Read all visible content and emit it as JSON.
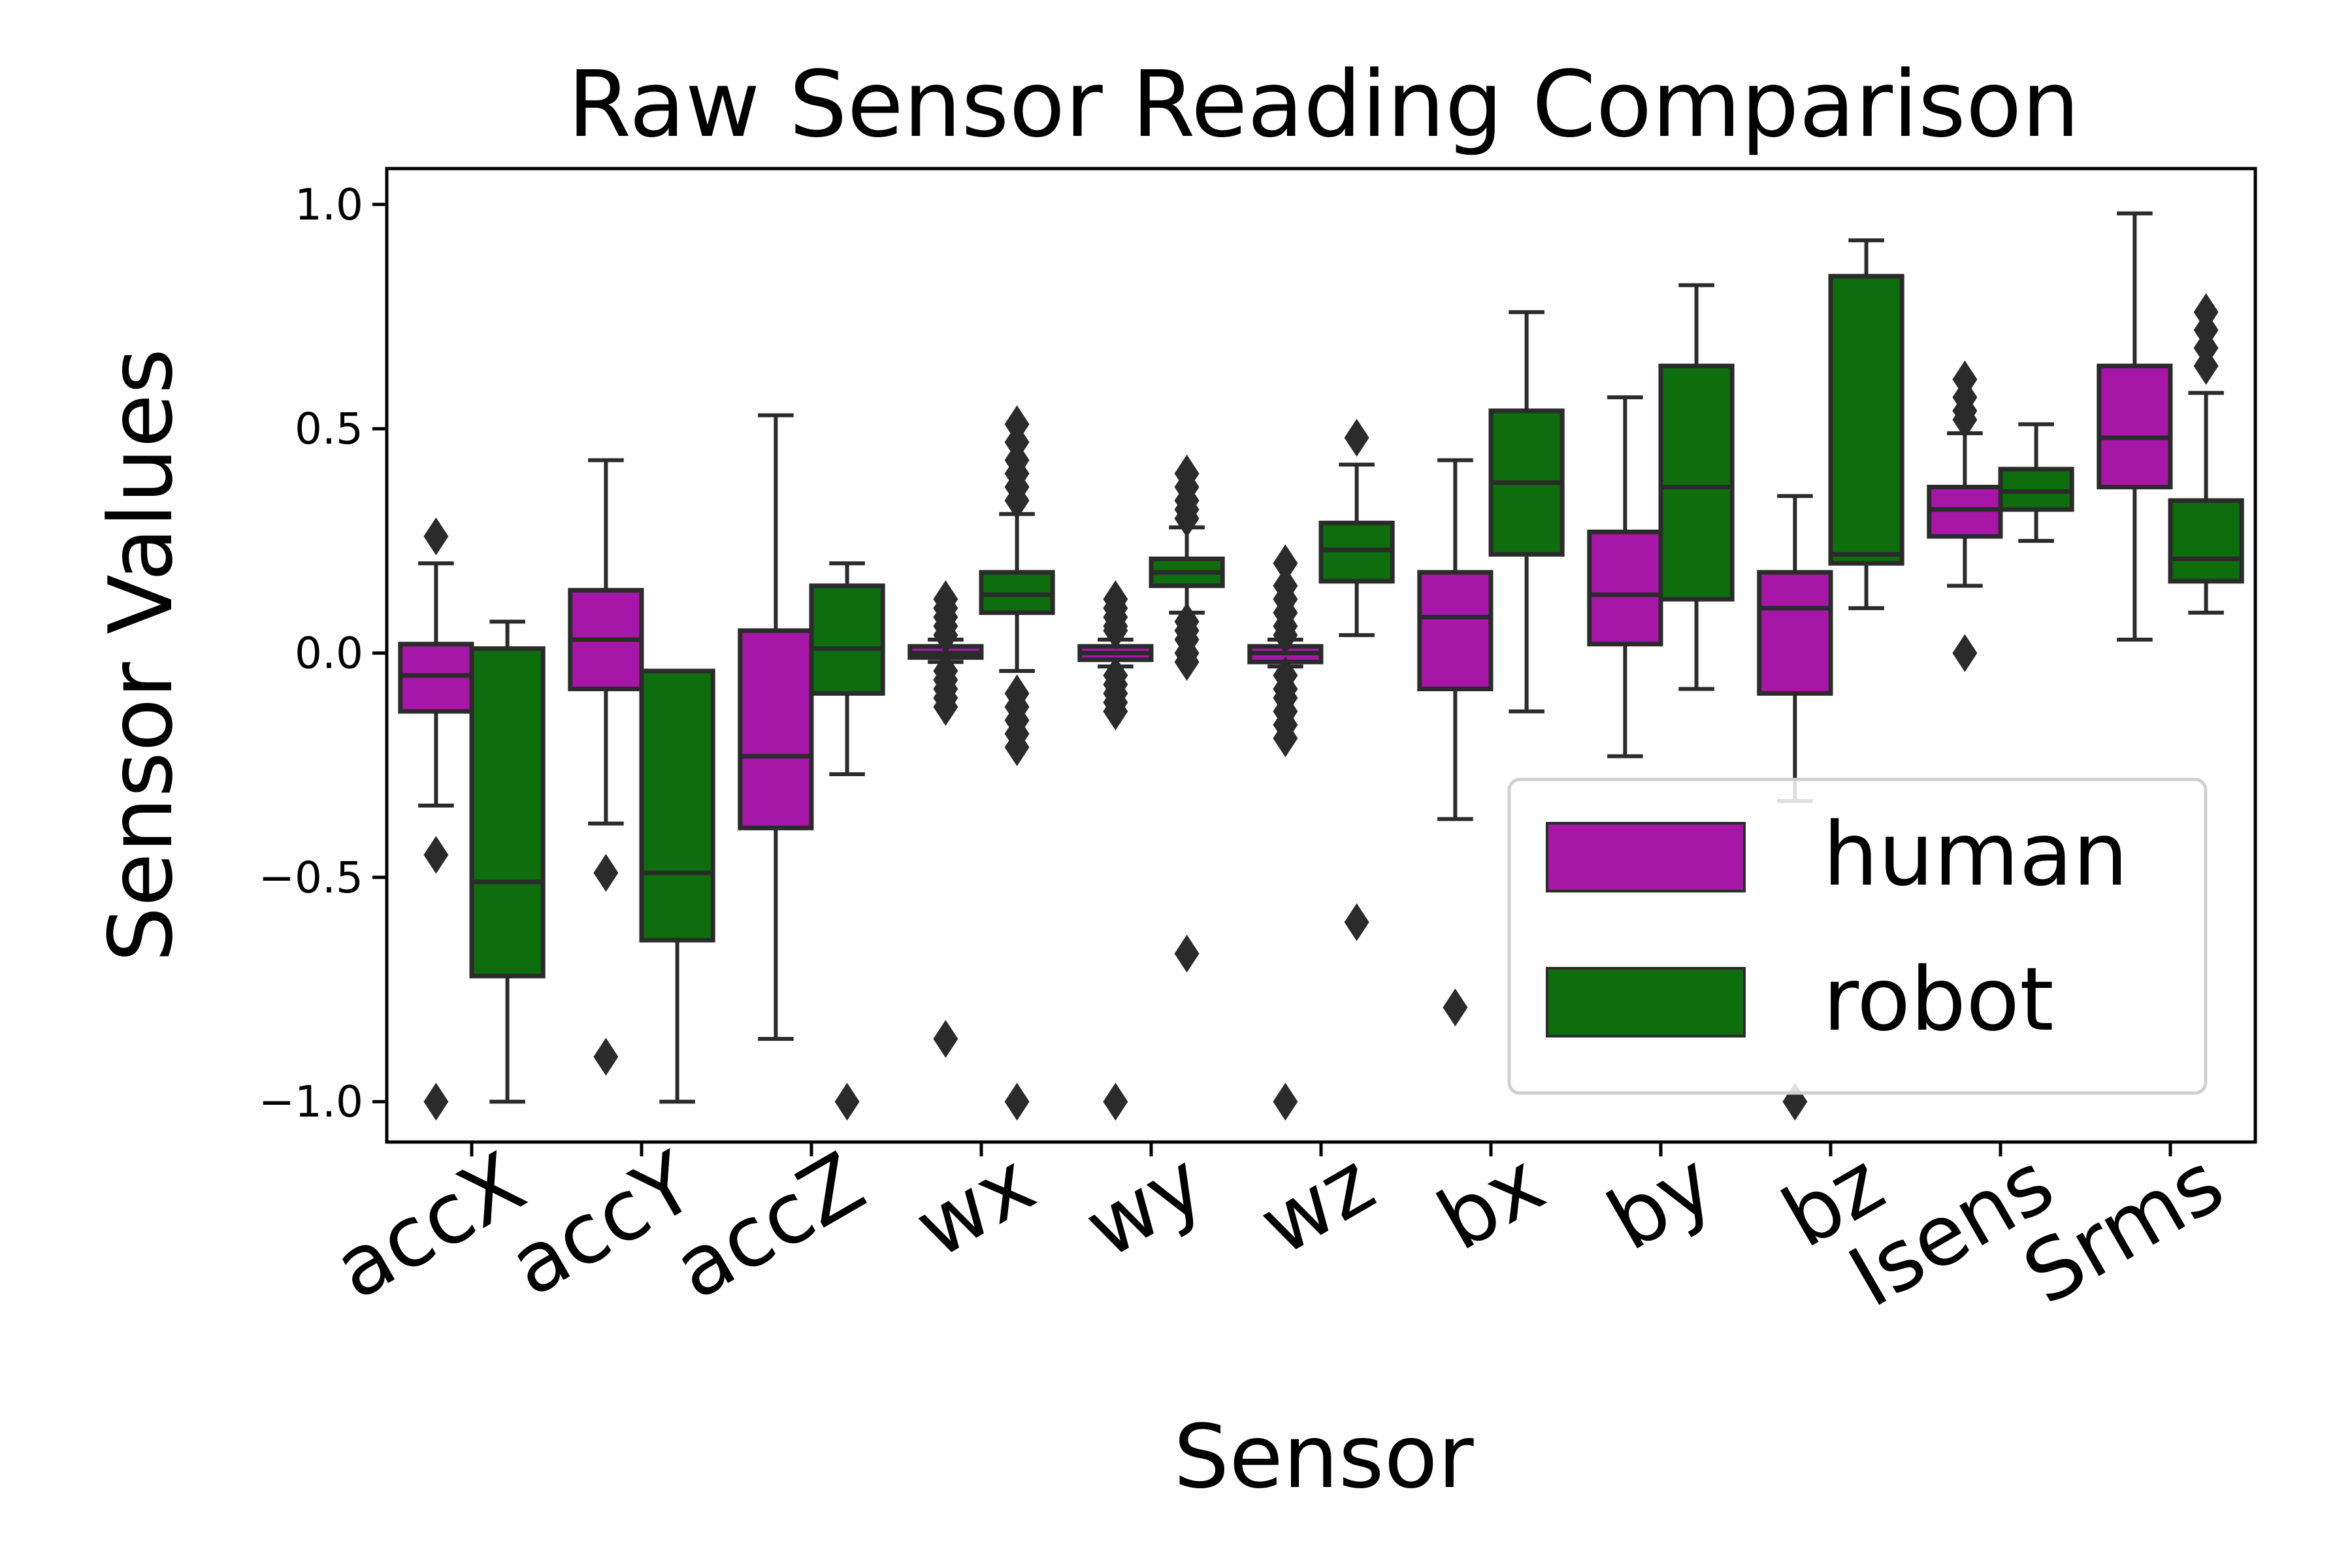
{
  "chart_data": {
    "type": "box",
    "title": "Raw Sensor Reading Comparison",
    "xlabel": "Sensor",
    "ylabel": "Sensor Values",
    "ylim": [
      -1.09,
      1.08
    ],
    "yticks": [
      1.0,
      0.5,
      0.0,
      -0.5,
      -1.0
    ],
    "ytick_labels": [
      "1.0",
      "0.5",
      "0.0",
      "−0.5",
      "−1.0"
    ],
    "categories": [
      "accX",
      "accY",
      "accZ",
      "wx",
      "wy",
      "wz",
      "bx",
      "by",
      "bz",
      "Isens",
      "Srms"
    ],
    "legend": {
      "position": "lower-right"
    },
    "colors": {
      "human": "#a717a7",
      "robot": "#0e6e0e",
      "edge": "#2b2b2b"
    },
    "series": [
      {
        "name": "human",
        "boxes": [
          {
            "q1": -0.13,
            "median": -0.05,
            "q3": 0.02,
            "whislo": -0.34,
            "whishi": 0.2,
            "outliers": [
              0.26,
              -0.45,
              -1.0
            ]
          },
          {
            "q1": -0.08,
            "median": 0.03,
            "q3": 0.14,
            "whislo": -0.38,
            "whishi": 0.43,
            "outliers": [
              -0.49,
              -0.9
            ]
          },
          {
            "q1": -0.39,
            "median": -0.23,
            "q3": 0.05,
            "whislo": -0.86,
            "whishi": 0.53,
            "outliers": []
          },
          {
            "q1": -0.01,
            "median": 0.0,
            "q3": 0.015,
            "whislo": -0.02,
            "whishi": 0.03,
            "outliers": [
              0.12,
              0.1,
              0.08,
              0.06,
              0.04,
              -0.04,
              -0.06,
              -0.08,
              -0.1,
              -0.12,
              -0.86
            ]
          },
          {
            "q1": -0.015,
            "median": 0.0,
            "q3": 0.015,
            "whislo": -0.03,
            "whishi": 0.03,
            "outliers": [
              0.12,
              0.1,
              0.08,
              0.06,
              0.05,
              -0.05,
              -0.07,
              -0.09,
              -0.11,
              -0.13,
              -1.0
            ]
          },
          {
            "q1": -0.02,
            "median": 0.0,
            "q3": 0.015,
            "whislo": -0.03,
            "whishi": 0.03,
            "outliers": [
              0.2,
              0.15,
              0.12,
              0.09,
              0.06,
              0.04,
              -0.05,
              -0.08,
              -0.1,
              -0.13,
              -0.16,
              -0.19,
              -1.0
            ]
          },
          {
            "q1": -0.08,
            "median": 0.08,
            "q3": 0.18,
            "whislo": -0.37,
            "whishi": 0.43,
            "outliers": [
              -0.79
            ]
          },
          {
            "q1": 0.02,
            "median": 0.13,
            "q3": 0.27,
            "whislo": -0.23,
            "whishi": 0.57,
            "outliers": []
          },
          {
            "q1": -0.09,
            "median": 0.1,
            "q3": 0.18,
            "whislo": -0.33,
            "whishi": 0.35,
            "outliers": [
              -1.0
            ]
          },
          {
            "q1": 0.26,
            "median": 0.32,
            "q3": 0.37,
            "whislo": 0.15,
            "whishi": 0.49,
            "outliers": [
              0.61,
              0.57,
              0.54,
              0.52,
              0.0
            ]
          },
          {
            "q1": 0.37,
            "median": 0.48,
            "q3": 0.64,
            "whislo": 0.03,
            "whishi": 0.98,
            "outliers": []
          }
        ]
      },
      {
        "name": "robot",
        "boxes": [
          {
            "q1": -0.72,
            "median": -0.51,
            "q3": 0.01,
            "whislo": -1.0,
            "whishi": 0.07,
            "outliers": []
          },
          {
            "q1": -0.64,
            "median": -0.49,
            "q3": -0.04,
            "whislo": -1.0,
            "whishi": -0.04,
            "outliers": []
          },
          {
            "q1": -0.09,
            "median": 0.01,
            "q3": 0.15,
            "whislo": -0.27,
            "whishi": 0.2,
            "outliers": [
              -1.0
            ]
          },
          {
            "q1": 0.09,
            "median": 0.13,
            "q3": 0.18,
            "whislo": -0.04,
            "whishi": 0.31,
            "outliers": [
              0.51,
              0.47,
              0.43,
              0.4,
              0.37,
              0.34,
              -0.09,
              -0.12,
              -0.15,
              -0.18,
              -0.21,
              -1.0
            ]
          },
          {
            "q1": 0.15,
            "median": 0.18,
            "q3": 0.21,
            "whislo": 0.09,
            "whishi": 0.28,
            "outliers": [
              0.4,
              0.37,
              0.34,
              0.32,
              0.3,
              0.07,
              0.05,
              0.03,
              0.0,
              -0.02,
              -0.67
            ]
          },
          {
            "q1": 0.16,
            "median": 0.23,
            "q3": 0.29,
            "whislo": 0.04,
            "whishi": 0.42,
            "outliers": [
              0.48,
              -0.6
            ]
          },
          {
            "q1": 0.22,
            "median": 0.38,
            "q3": 0.54,
            "whislo": -0.13,
            "whishi": 0.76,
            "outliers": []
          },
          {
            "q1": 0.12,
            "median": 0.37,
            "q3": 0.64,
            "whislo": -0.08,
            "whishi": 0.82,
            "outliers": []
          },
          {
            "q1": 0.2,
            "median": 0.22,
            "q3": 0.84,
            "whislo": 0.1,
            "whishi": 0.92,
            "outliers": []
          },
          {
            "q1": 0.32,
            "median": 0.36,
            "q3": 0.41,
            "whislo": 0.25,
            "whishi": 0.51,
            "outliers": []
          },
          {
            "q1": 0.16,
            "median": 0.21,
            "q3": 0.34,
            "whislo": 0.09,
            "whishi": 0.58,
            "outliers": [
              0.76,
              0.72,
              0.68,
              0.64
            ]
          }
        ]
      }
    ]
  }
}
